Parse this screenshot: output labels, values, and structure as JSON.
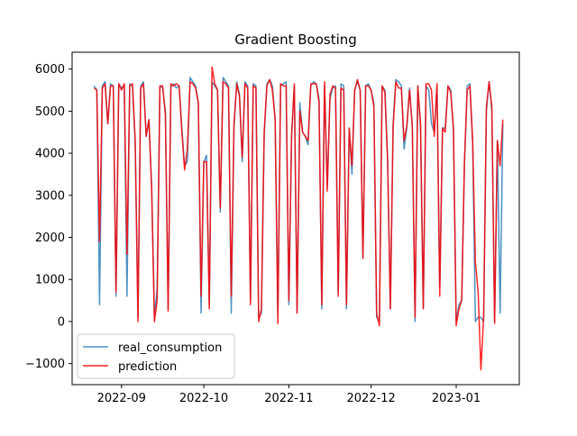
{
  "chart_data": {
    "type": "line",
    "title": "Gradient Boosting",
    "xlabel": "",
    "ylabel": "",
    "xlim": [
      "2022-08-14",
      "2023-01-24"
    ],
    "ylim": [
      -1500,
      6400
    ],
    "x_ticks": [
      "2022-09-01",
      "2022-10-01",
      "2022-11-01",
      "2022-12-01",
      "2023-01-01"
    ],
    "x_tick_labels": [
      "2022-09",
      "2022-10",
      "2022-11",
      "2022-12",
      "2023-01"
    ],
    "y_ticks": [
      -1000,
      0,
      1000,
      2000,
      3000,
      4000,
      5000,
      6000
    ],
    "y_tick_labels": [
      "−1000",
      "0",
      "1000",
      "2000",
      "3000",
      "4000",
      "5000",
      "6000"
    ],
    "grid": false,
    "legend_position": "lower-left",
    "x": [
      "2022-08-22",
      "2022-08-23",
      "2022-08-24",
      "2022-08-25",
      "2022-08-26",
      "2022-08-27",
      "2022-08-28",
      "2022-08-29",
      "2022-08-30",
      "2022-08-31",
      "2022-09-01",
      "2022-09-02",
      "2022-09-03",
      "2022-09-04",
      "2022-09-05",
      "2022-09-06",
      "2022-09-07",
      "2022-09-08",
      "2022-09-09",
      "2022-09-10",
      "2022-09-11",
      "2022-09-12",
      "2022-09-13",
      "2022-09-14",
      "2022-09-15",
      "2022-09-16",
      "2022-09-17",
      "2022-09-18",
      "2022-09-19",
      "2022-09-20",
      "2022-09-21",
      "2022-09-22",
      "2022-09-23",
      "2022-09-24",
      "2022-09-25",
      "2022-09-26",
      "2022-09-27",
      "2022-09-28",
      "2022-09-29",
      "2022-09-30",
      "2022-10-01",
      "2022-10-02",
      "2022-10-03",
      "2022-10-04",
      "2022-10-05",
      "2022-10-06",
      "2022-10-07",
      "2022-10-08",
      "2022-10-09",
      "2022-10-10",
      "2022-10-11",
      "2022-10-12",
      "2022-10-13",
      "2022-10-14",
      "2022-10-15",
      "2022-10-16",
      "2022-10-17",
      "2022-10-18",
      "2022-10-19",
      "2022-10-20",
      "2022-10-21",
      "2022-10-22",
      "2022-10-23",
      "2022-10-24",
      "2022-10-25",
      "2022-10-26",
      "2022-10-27",
      "2022-10-28",
      "2022-10-29",
      "2022-10-30",
      "2022-10-31",
      "2022-11-01",
      "2022-11-02",
      "2022-11-03",
      "2022-11-04",
      "2022-11-05",
      "2022-11-06",
      "2022-11-07",
      "2022-11-08",
      "2022-11-09",
      "2022-11-10",
      "2022-11-11",
      "2022-11-12",
      "2022-11-13",
      "2022-11-14",
      "2022-11-15",
      "2022-11-16",
      "2022-11-17",
      "2022-11-18",
      "2022-11-19",
      "2022-11-20",
      "2022-11-21",
      "2022-11-22",
      "2022-11-23",
      "2022-11-24",
      "2022-11-25",
      "2022-11-26",
      "2022-11-27",
      "2022-11-28",
      "2022-11-29",
      "2022-11-30",
      "2022-12-01",
      "2022-12-02",
      "2022-12-03",
      "2022-12-04",
      "2022-12-05",
      "2022-12-06",
      "2022-12-07",
      "2022-12-08",
      "2022-12-09",
      "2022-12-10",
      "2022-12-11",
      "2022-12-12",
      "2022-12-13",
      "2022-12-14",
      "2022-12-15",
      "2022-12-16",
      "2022-12-17",
      "2022-12-18",
      "2022-12-19",
      "2022-12-20",
      "2022-12-21",
      "2022-12-22",
      "2022-12-23",
      "2022-12-24",
      "2022-12-25",
      "2022-12-26",
      "2022-12-27",
      "2022-12-28",
      "2022-12-29",
      "2022-12-30",
      "2022-12-31",
      "2023-01-01",
      "2023-01-02",
      "2023-01-03",
      "2023-01-04",
      "2023-01-05",
      "2023-01-06",
      "2023-01-07",
      "2023-01-08",
      "2023-01-09",
      "2023-01-10",
      "2023-01-11",
      "2023-01-12",
      "2023-01-13",
      "2023-01-14",
      "2023-01-15",
      "2023-01-16",
      "2023-01-17",
      "2023-01-18"
    ],
    "series": [
      {
        "name": "real_consumption",
        "color": "#1f77b4",
        "values": [
          5600,
          5500,
          400,
          5600,
          5700,
          4700,
          5650,
          5600,
          600,
          5650,
          5550,
          5600,
          600,
          5650,
          5600,
          4200,
          100,
          5600,
          5700,
          4400,
          4800,
          3200,
          100,
          800,
          5600,
          5550,
          5000,
          300,
          5600,
          5650,
          5550,
          5600,
          4600,
          3700,
          3800,
          5800,
          5700,
          5600,
          5200,
          200,
          3800,
          3950,
          400,
          5700,
          5600,
          5500,
          2600,
          5800,
          5700,
          5600,
          200,
          4600,
          5700,
          5400,
          3800,
          5700,
          5600,
          500,
          5650,
          5600,
          100,
          200,
          4400,
          5650,
          5750,
          5600,
          4800,
          200,
          5600,
          5650,
          5700,
          400,
          4400,
          5600,
          200,
          5200,
          4500,
          4400,
          4200,
          5600,
          5700,
          5650,
          5300,
          300,
          5600,
          3200,
          5300,
          5550,
          5600,
          700,
          5650,
          5600,
          300,
          4600,
          3500,
          5500,
          5700,
          5500,
          1500,
          5600,
          5650,
          5500,
          5200,
          100,
          0,
          5600,
          5500,
          3900,
          300,
          4700,
          5750,
          5700,
          5600,
          4100,
          4600,
          5550,
          4600,
          0,
          5600,
          4600,
          300,
          5600,
          5500,
          4700,
          4500,
          5600,
          800,
          4600,
          4600,
          5600,
          5500,
          4500,
          0,
          400,
          500,
          3700,
          5600,
          5650,
          4200,
          0,
          100,
          100,
          0,
          5000,
          5700,
          5000,
          0,
          4300,
          200,
          4700
        ]
      },
      {
        "name": "prediction",
        "color": "#ff0000",
        "values": [
          5550,
          5500,
          1900,
          5550,
          5650,
          4700,
          5600,
          5600,
          700,
          5650,
          5500,
          5650,
          1600,
          5600,
          5650,
          4300,
          0,
          5550,
          5650,
          4400,
          4800,
          3100,
          0,
          500,
          5600,
          5600,
          4900,
          250,
          5650,
          5600,
          5650,
          5600,
          4500,
          3600,
          4100,
          5700,
          5650,
          5550,
          5200,
          600,
          3800,
          3800,
          300,
          6050,
          5650,
          5500,
          2700,
          5700,
          5650,
          5550,
          600,
          4700,
          5650,
          5350,
          3900,
          5650,
          5550,
          400,
          5600,
          5550,
          0,
          300,
          4500,
          5600,
          5750,
          5500,
          4800,
          -50,
          5650,
          5600,
          5600,
          500,
          4450,
          5650,
          200,
          5000,
          4500,
          4400,
          4300,
          5650,
          5650,
          5650,
          5200,
          400,
          5700,
          3100,
          5400,
          5600,
          5550,
          600,
          5550,
          5500,
          400,
          4600,
          3700,
          5500,
          5750,
          5500,
          1500,
          5600,
          5600,
          5500,
          5100,
          200,
          -100,
          5600,
          5450,
          3800,
          300,
          4600,
          5700,
          5550,
          5550,
          4300,
          4650,
          5500,
          4650,
          100,
          5600,
          4700,
          300,
          5650,
          5650,
          5500,
          4400,
          5650,
          600,
          4600,
          4500,
          5600,
          5450,
          4600,
          -100,
          300,
          500,
          3800,
          5500,
          5600,
          4300,
          1400,
          700,
          -1150,
          100,
          5100,
          5700,
          5100,
          -50,
          4300,
          3700,
          4800
        ]
      }
    ]
  }
}
